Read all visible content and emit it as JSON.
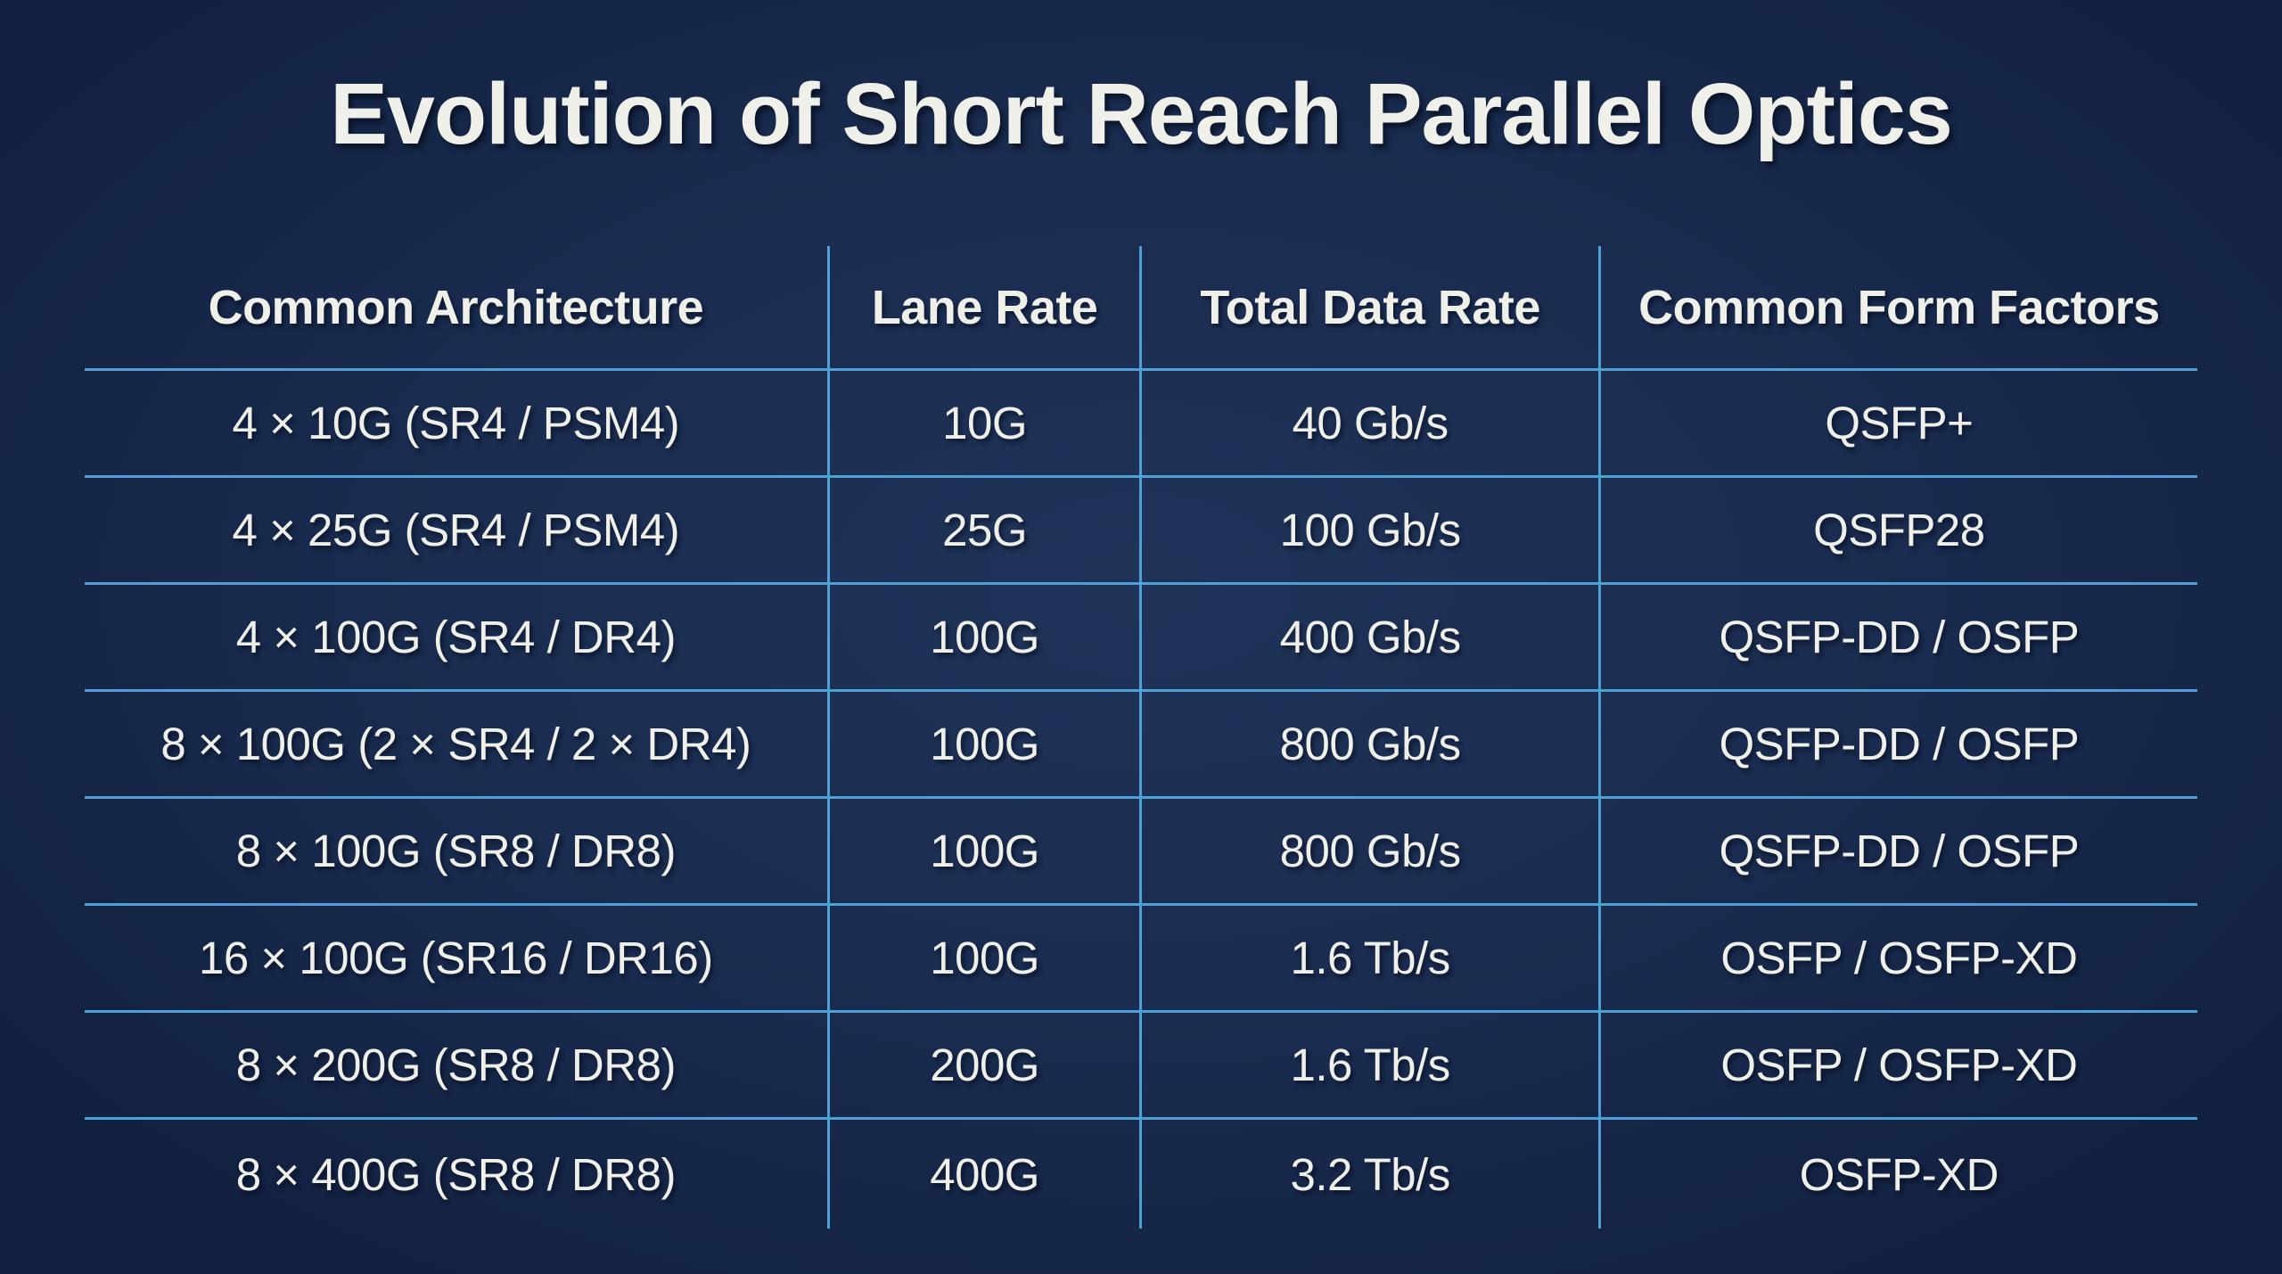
{
  "title": "Evolution of Short Reach Parallel Optics",
  "colors": {
    "background_center": "#203459",
    "background_mid": "#192b4e",
    "background_edge": "#12203f",
    "grid_line": "#4fa0d4",
    "text": "#eff0ea"
  },
  "chart_data": {
    "type": "table",
    "title": "Evolution of Short Reach Parallel Optics",
    "columns": [
      "Common Architecture",
      "Lane Rate",
      "Total Data Rate",
      "Common Form Factors"
    ],
    "rows": [
      [
        "4 × 10G (SR4 / PSM4)",
        "10G",
        "40 Gb/s",
        "QSFP+"
      ],
      [
        "4 × 25G (SR4 / PSM4)",
        "25G",
        "100 Gb/s",
        "QSFP28"
      ],
      [
        "4 × 100G (SR4 / DR4)",
        "100G",
        "400 Gb/s",
        "QSFP-DD / OSFP"
      ],
      [
        "8 × 100G (2 × SR4 / 2 × DR4)",
        "100G",
        "800 Gb/s",
        "QSFP-DD / OSFP"
      ],
      [
        "8 × 100G (SR8 / DR8)",
        "100G",
        "800 Gb/s",
        "QSFP-DD / OSFP"
      ],
      [
        "16 × 100G (SR16 / DR16)",
        "100G",
        "1.6 Tb/s",
        "OSFP / OSFP-XD"
      ],
      [
        "8 × 200G (SR8 / DR8)",
        "200G",
        "1.6 Tb/s",
        "OSFP / OSFP-XD"
      ],
      [
        "8 × 400G (SR8 / DR8)",
        "400G",
        "3.2 Tb/s",
        "OSFP-XD"
      ]
    ],
    "layout": {
      "grid": "internal lines only, no outer border",
      "column_alignment": "center",
      "column_width_pct": [
        35.2,
        14.8,
        21.7,
        28.3
      ]
    }
  }
}
